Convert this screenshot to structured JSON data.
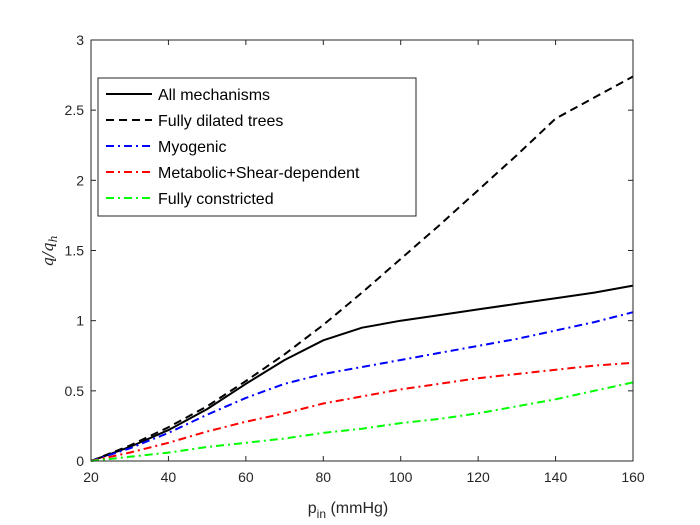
{
  "chart_data": {
    "type": "line",
    "title": "",
    "xlabel": "p_in (mmHg)",
    "xlabel_main": "p",
    "xlabel_sub": "in",
    "xlabel_rest": " (mmHg)",
    "ylabel": "q/q_h",
    "ylabel_main": "q/q",
    "ylabel_sub": "h",
    "xlim": [
      20,
      160
    ],
    "ylim": [
      0,
      3
    ],
    "xticks": [
      20,
      40,
      60,
      80,
      100,
      120,
      140,
      160
    ],
    "yticks": [
      0,
      0.5,
      1,
      1.5,
      2,
      2.5,
      3
    ],
    "ytick_labels": [
      "0",
      "0.5",
      "1",
      "1.5",
      "2",
      "2.5",
      "3"
    ],
    "grid": false,
    "legend_position": "top-left",
    "x": [
      20,
      30,
      40,
      50,
      60,
      70,
      80,
      90,
      100,
      110,
      120,
      130,
      140,
      150,
      160
    ],
    "series": [
      {
        "name": "All mechanisms",
        "color": "#000000",
        "style": "solid",
        "values": [
          0,
          0.1,
          0.22,
          0.37,
          0.55,
          0.72,
          0.86,
          0.95,
          1.0,
          1.04,
          1.08,
          1.12,
          1.16,
          1.2,
          1.25
        ]
      },
      {
        "name": "Fully dilated trees",
        "color": "#000000",
        "style": "dashed",
        "values": [
          0,
          0.11,
          0.24,
          0.39,
          0.57,
          0.76,
          0.97,
          1.2,
          1.44,
          1.68,
          1.93,
          2.18,
          2.44,
          2.59,
          2.74
        ]
      },
      {
        "name": "Myogenic",
        "color": "#0000ff",
        "style": "dashdot",
        "values": [
          0,
          0.09,
          0.2,
          0.33,
          0.45,
          0.55,
          0.62,
          0.67,
          0.72,
          0.77,
          0.82,
          0.87,
          0.93,
          0.99,
          1.06
        ]
      },
      {
        "name": "Metabolic+Shear-dependent",
        "color": "#ff0000",
        "style": "dashdot",
        "values": [
          0,
          0.06,
          0.13,
          0.21,
          0.28,
          0.34,
          0.41,
          0.46,
          0.51,
          0.55,
          0.59,
          0.62,
          0.65,
          0.68,
          0.7
        ]
      },
      {
        "name": "Fully constricted",
        "color": "#00ff00",
        "style": "dashdot",
        "values": [
          0,
          0.03,
          0.06,
          0.1,
          0.13,
          0.16,
          0.2,
          0.23,
          0.27,
          0.3,
          0.34,
          0.39,
          0.44,
          0.5,
          0.56
        ]
      }
    ]
  }
}
